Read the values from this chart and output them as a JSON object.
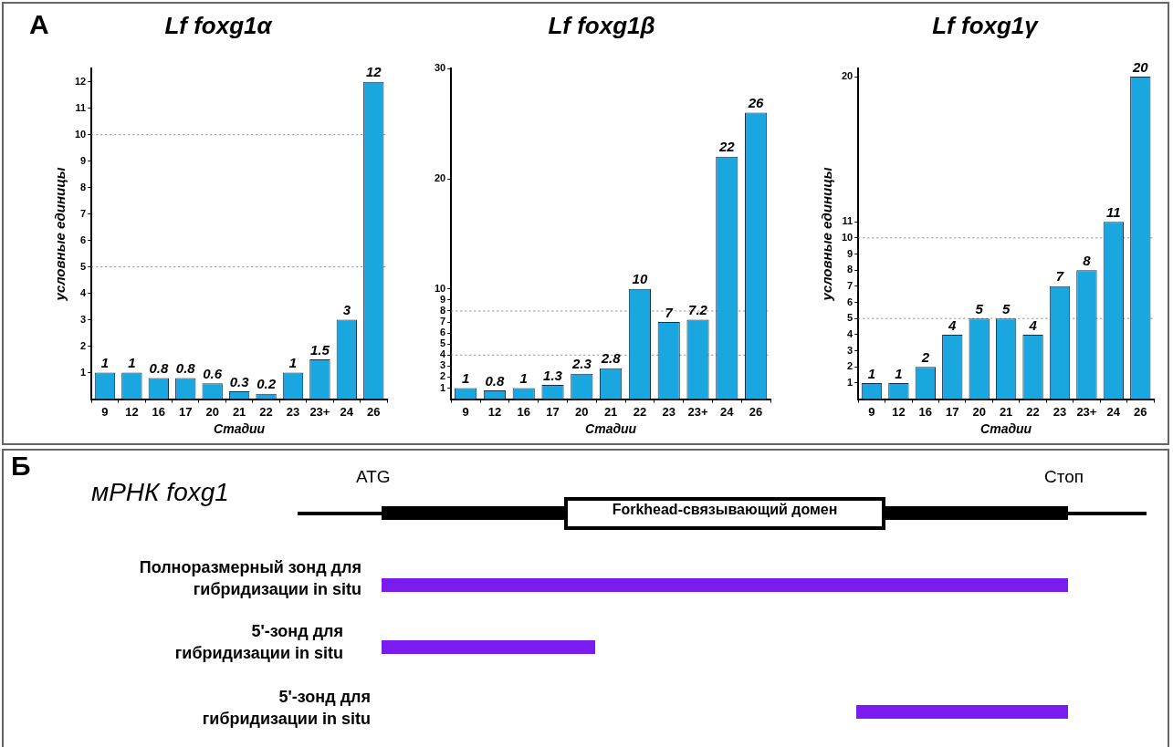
{
  "chart_data": [
    {
      "type": "bar",
      "title": "Lf foxg1α",
      "xlabel": "Стадии",
      "ylabel": "условные единицы",
      "annotations": [
        "А"
      ],
      "categories": [
        "9",
        "12",
        "16",
        "17",
        "20",
        "21",
        "22",
        "23",
        "23+",
        "24",
        "26"
      ],
      "values": [
        1,
        1,
        0.8,
        0.8,
        0.6,
        0.3,
        0.2,
        1,
        1.5,
        3,
        12
      ],
      "color": "#1aa7e0",
      "ylim": [
        0,
        12.5
      ],
      "yticks": [
        1,
        2,
        3,
        4,
        5,
        6,
        7,
        8,
        9,
        10,
        11,
        12
      ],
      "grid": false,
      "data_labels": true,
      "ref_lines": [
        {
          "axis": "y",
          "value": 5,
          "color": "#888888",
          "line_style": "dotted"
        },
        {
          "axis": "y",
          "value": 10,
          "color": "#888888",
          "line_style": "dotted"
        }
      ]
    },
    {
      "type": "bar",
      "title": "Lf foxg1β",
      "xlabel": "Стадии",
      "categories": [
        "9",
        "12",
        "16",
        "17",
        "20",
        "21",
        "22",
        "23",
        "23+",
        "24",
        "26"
      ],
      "values": [
        1,
        0.8,
        1,
        1.3,
        2.3,
        2.8,
        10,
        7,
        7.2,
        22,
        26
      ],
      "color": "#1aa7e0",
      "ylim": [
        0,
        30
      ],
      "yticks": [
        1,
        2,
        3,
        4,
        5,
        6,
        7,
        8,
        9,
        10,
        20,
        30
      ],
      "grid": false,
      "data_labels": true,
      "ref_lines": [
        {
          "axis": "y",
          "value": 4,
          "color": "#888888",
          "line_style": "dotted"
        },
        {
          "axis": "y",
          "value": 8,
          "color": "#888888",
          "line_style": "dotted"
        }
      ]
    },
    {
      "type": "bar",
      "title": "Lf foxg1γ",
      "xlabel": "Стадии",
      "ylabel": "условные единицы",
      "categories": [
        "9",
        "12",
        "16",
        "17",
        "20",
        "21",
        "22",
        "23",
        "23+",
        "24",
        "26"
      ],
      "values": [
        1,
        1,
        2,
        4,
        5,
        5,
        4,
        7,
        8,
        11,
        20
      ],
      "color": "#1aa7e0",
      "ylim": [
        0,
        20.5
      ],
      "yticks": [
        1,
        2,
        3,
        4,
        5,
        6,
        7,
        8,
        9,
        10,
        11,
        20
      ],
      "grid": false,
      "data_labels": true,
      "ref_lines": [
        {
          "axis": "y",
          "value": 5,
          "color": "#888888",
          "line_style": "dotted"
        },
        {
          "axis": "y",
          "value": 10,
          "color": "#888888",
          "line_style": "dotted"
        }
      ]
    },
    {
      "type": "other",
      "title": "Б",
      "annotations": [
        "мРНК foxg1",
        "ATG",
        "Стоп",
        "Forkhead-связывающий домен",
        "Полноразмерный зонд для гибридизации in situ",
        "5'-зонд для гибридизации in situ",
        "5'-зонд для гибридизации in situ"
      ]
    }
  ]
}
